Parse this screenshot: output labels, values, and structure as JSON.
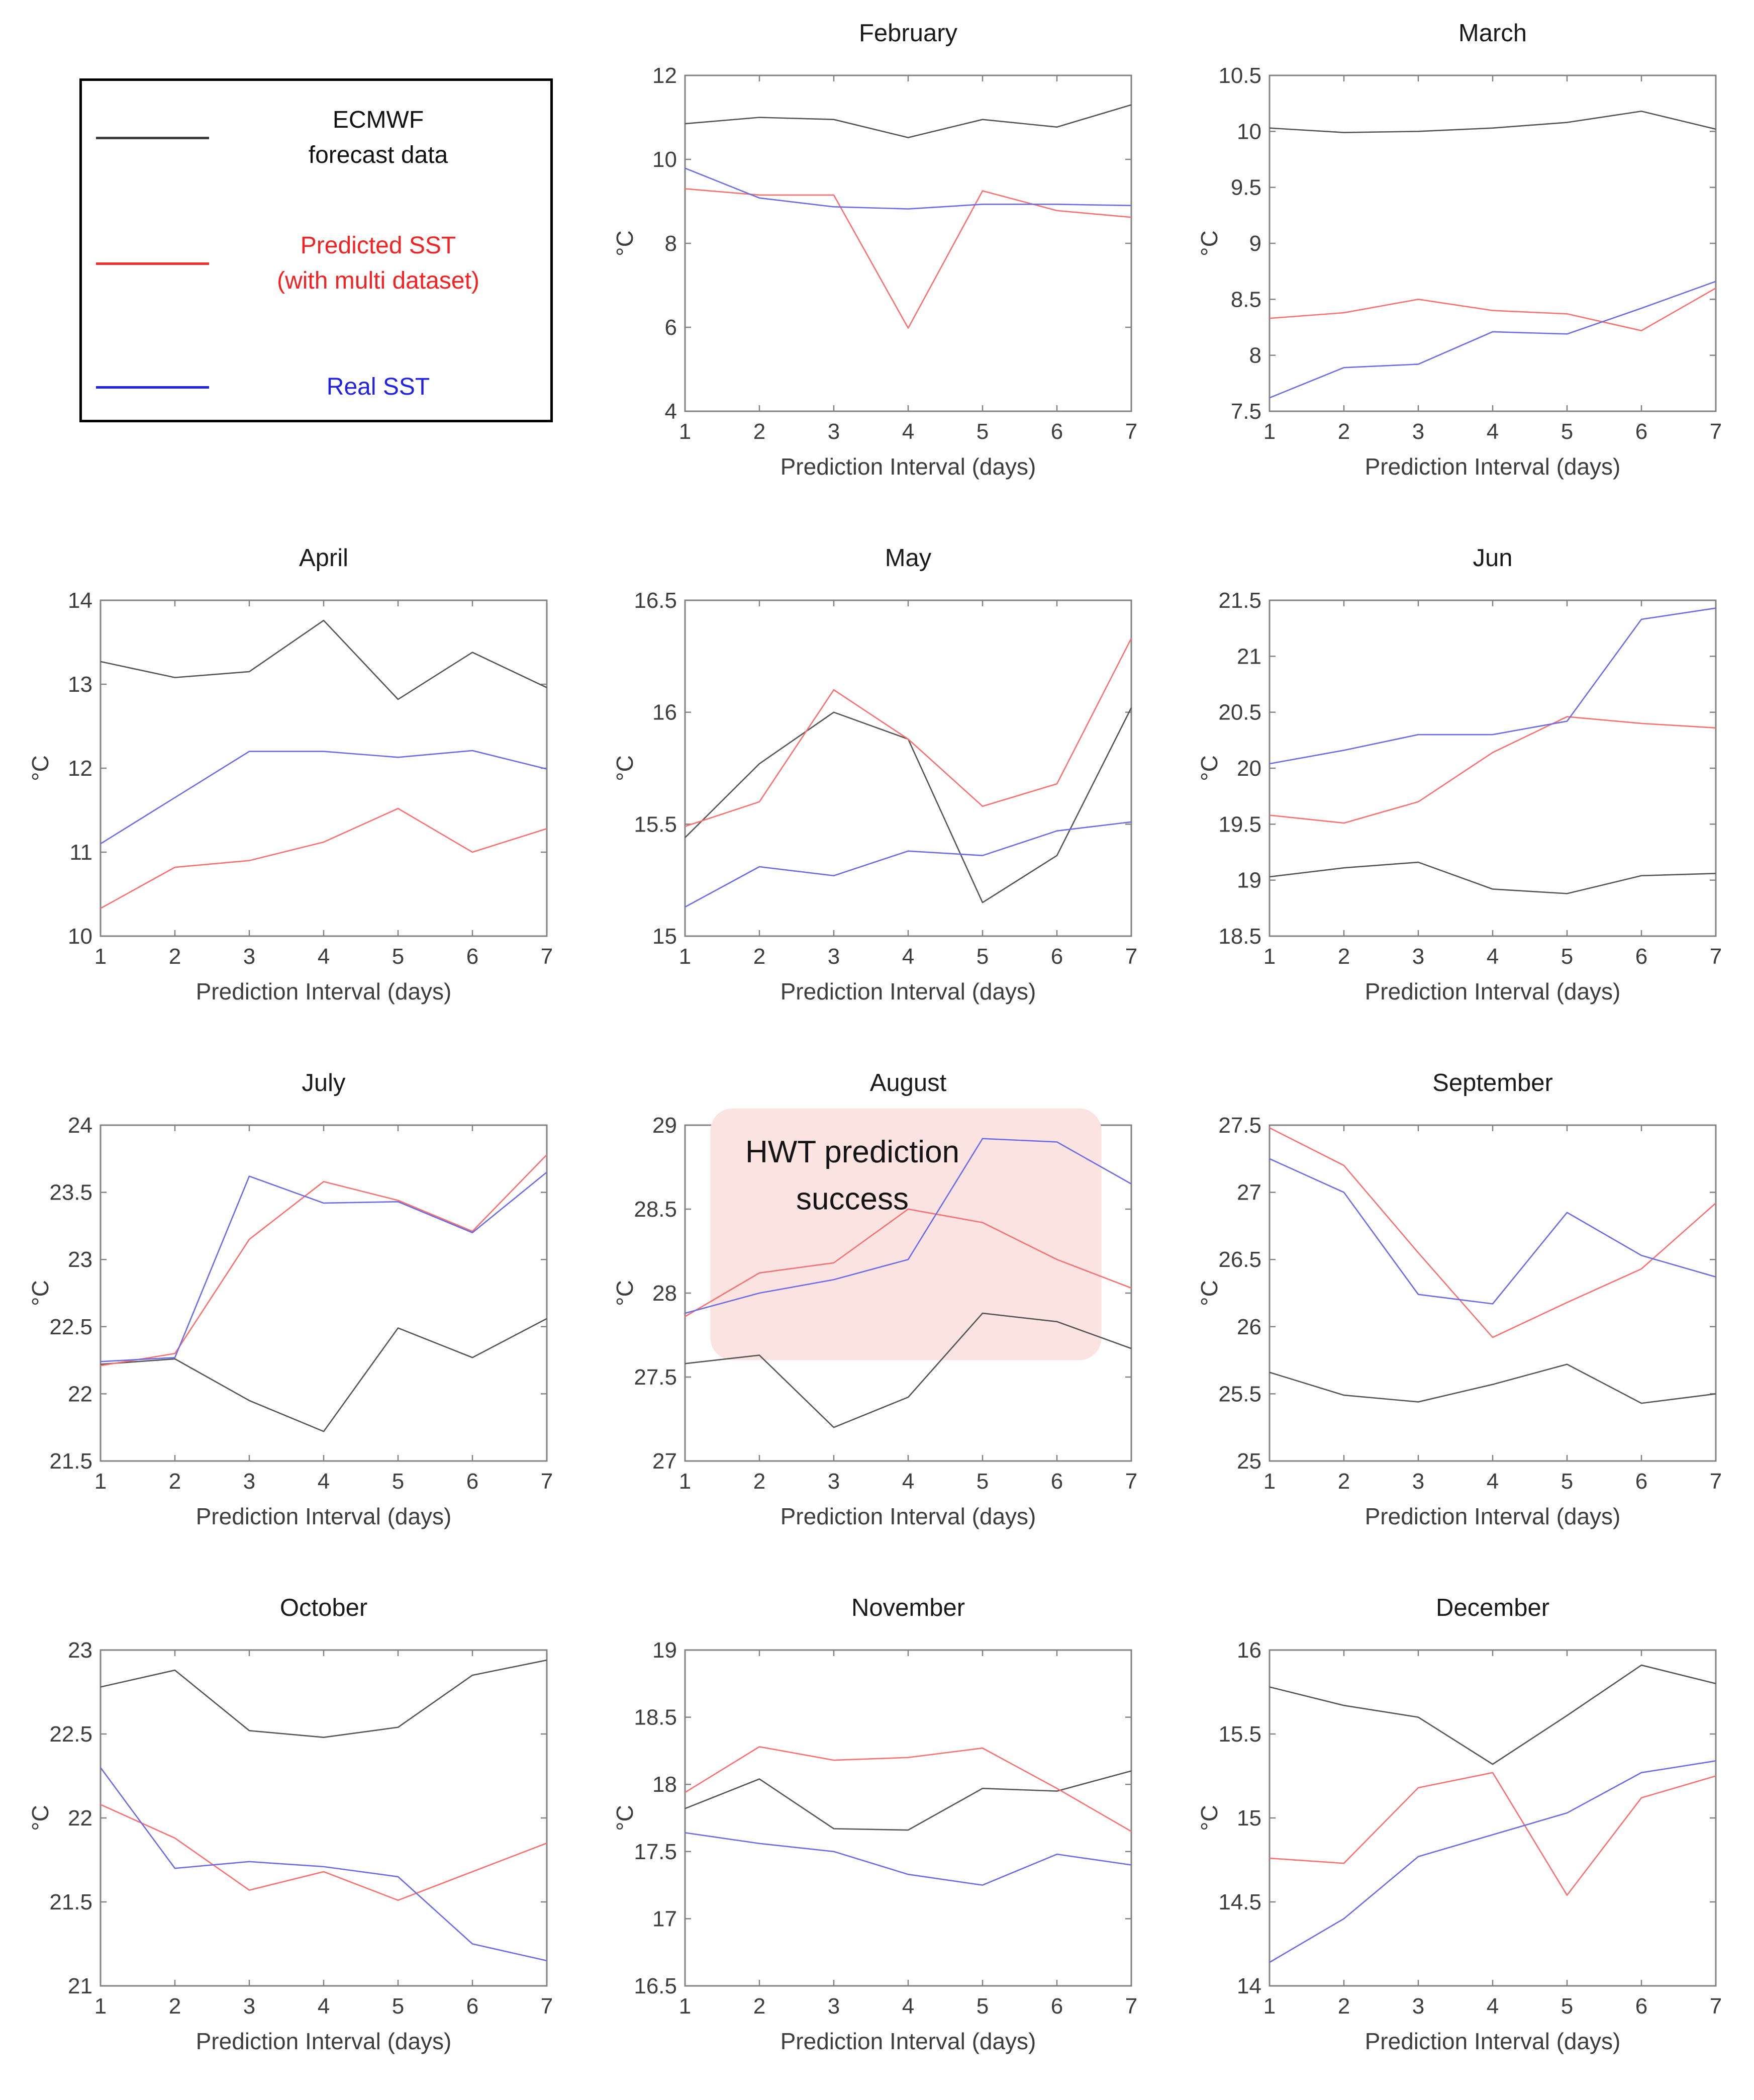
{
  "figure": {
    "background": "#ffffff",
    "frame_color": "#828282",
    "tick_label_color": "#3d3d3d",
    "title_color": "#1a1a1a"
  },
  "legend": {
    "border_color": "#000000",
    "entries": [
      {
        "series": "ecmwf",
        "label_lines": [
          "ECMWF",
          "forecast data"
        ],
        "line_color": "#3f3f3f",
        "text_color": "#111111"
      },
      {
        "series": "predicted",
        "label_lines": [
          "Predicted SST",
          "(with multi dataset)"
        ],
        "line_color": "#f02f2f",
        "text_color": "#f42222"
      },
      {
        "series": "real",
        "label_lines": [
          "Real SST"
        ],
        "line_color": "#2222dd",
        "text_color": "#2121e6"
      }
    ]
  },
  "axis_labels": {
    "x": "Prediction Interval (days)",
    "y": "°C"
  },
  "series_colors": {
    "ecmwf": "#545454",
    "predicted": "#f87070",
    "real": "#6b6be6"
  },
  "chart_data": [
    {
      "type": "line",
      "title": "February",
      "x": [
        1,
        2,
        3,
        4,
        5,
        6,
        7
      ],
      "xlabel": "Prediction Interval (days)",
      "ylabel": "°C",
      "ylim": [
        4,
        12
      ],
      "ystep": 2,
      "grid": false,
      "series": [
        {
          "name": "ECMWF forecast data",
          "color": "#545454",
          "values": [
            10.85,
            11.0,
            10.95,
            10.52,
            10.95,
            10.77,
            11.3
          ]
        },
        {
          "name": "Predicted SST (with multi dataset)",
          "color": "#f87070",
          "values": [
            9.3,
            9.15,
            9.15,
            5.98,
            9.25,
            8.78,
            8.62
          ]
        },
        {
          "name": "Real SST",
          "color": "#6b6be6",
          "values": [
            9.79,
            9.08,
            8.87,
            8.82,
            8.93,
            8.93,
            8.9
          ]
        }
      ]
    },
    {
      "type": "line",
      "title": "March",
      "x": [
        1,
        2,
        3,
        4,
        5,
        6,
        7
      ],
      "xlabel": "Prediction Interval (days)",
      "ylabel": "°C",
      "ylim": [
        7.5,
        10.5
      ],
      "ystep": 0.5,
      "grid": false,
      "series": [
        {
          "name": "ECMWF forecast data",
          "color": "#545454",
          "values": [
            10.03,
            9.99,
            10.0,
            10.03,
            10.08,
            10.18,
            10.02
          ]
        },
        {
          "name": "Predicted SST (with multi dataset)",
          "color": "#f87070",
          "values": [
            8.33,
            8.38,
            8.5,
            8.4,
            8.37,
            8.22,
            8.6
          ]
        },
        {
          "name": "Real SST",
          "color": "#6b6be6",
          "values": [
            7.62,
            7.89,
            7.92,
            8.21,
            8.19,
            8.42,
            8.66
          ]
        }
      ]
    },
    {
      "type": "line",
      "title": "April",
      "x": [
        1,
        2,
        3,
        4,
        5,
        6,
        7
      ],
      "xlabel": "Prediction Interval (days)",
      "ylabel": "°C",
      "ylim": [
        10,
        14
      ],
      "ystep": 1,
      "grid": false,
      "series": [
        {
          "name": "ECMWF forecast data",
          "color": "#545454",
          "values": [
            13.27,
            13.08,
            13.15,
            13.76,
            12.82,
            13.38,
            12.96
          ]
        },
        {
          "name": "Predicted SST (with multi dataset)",
          "color": "#f87070",
          "values": [
            10.33,
            10.82,
            10.9,
            11.12,
            11.52,
            11.0,
            11.28
          ]
        },
        {
          "name": "Real SST",
          "color": "#6b6be6",
          "values": [
            11.1,
            11.65,
            12.2,
            12.2,
            12.13,
            12.21,
            11.99
          ]
        }
      ]
    },
    {
      "type": "line",
      "title": "May",
      "x": [
        1,
        2,
        3,
        4,
        5,
        6,
        7
      ],
      "xlabel": "Prediction Interval (days)",
      "ylabel": "°C",
      "ylim": [
        15,
        16.5
      ],
      "ystep": 0.5,
      "grid": false,
      "series": [
        {
          "name": "ECMWF forecast data",
          "color": "#545454",
          "values": [
            15.44,
            15.77,
            16.0,
            15.88,
            15.15,
            15.36,
            16.02
          ]
        },
        {
          "name": "Predicted SST (with multi dataset)",
          "color": "#f87070",
          "values": [
            15.49,
            15.6,
            16.1,
            15.88,
            15.58,
            15.68,
            16.33
          ]
        },
        {
          "name": "Real SST",
          "color": "#6b6be6",
          "values": [
            15.13,
            15.31,
            15.27,
            15.38,
            15.36,
            15.47,
            15.51
          ]
        }
      ]
    },
    {
      "type": "line",
      "title": "Jun",
      "x": [
        1,
        2,
        3,
        4,
        5,
        6,
        7
      ],
      "xlabel": "Prediction Interval (days)",
      "ylabel": "°C",
      "ylim": [
        18.5,
        21.5
      ],
      "ystep": 0.5,
      "grid": false,
      "series": [
        {
          "name": "ECMWF forecast data",
          "color": "#545454",
          "values": [
            19.03,
            19.11,
            19.16,
            18.92,
            18.88,
            19.04,
            19.06
          ]
        },
        {
          "name": "Predicted SST (with multi dataset)",
          "color": "#f87070",
          "values": [
            19.58,
            19.51,
            19.7,
            20.14,
            20.46,
            20.4,
            20.36
          ]
        },
        {
          "name": "Real SST",
          "color": "#6b6be6",
          "values": [
            20.04,
            20.16,
            20.3,
            20.3,
            20.42,
            21.33,
            21.43
          ]
        }
      ]
    },
    {
      "type": "line",
      "title": "July",
      "x": [
        1,
        2,
        3,
        4,
        5,
        6,
        7
      ],
      "xlabel": "Prediction Interval (days)",
      "ylabel": "°C",
      "ylim": [
        21.5,
        24
      ],
      "ystep": 0.5,
      "grid": false,
      "series": [
        {
          "name": "ECMWF forecast data",
          "color": "#545454",
          "values": [
            22.22,
            22.26,
            21.95,
            21.72,
            22.49,
            22.27,
            22.56
          ]
        },
        {
          "name": "Predicted SST (with multi dataset)",
          "color": "#f87070",
          "values": [
            22.21,
            22.3,
            23.15,
            23.58,
            23.44,
            23.21,
            23.78
          ]
        },
        {
          "name": "Real SST",
          "color": "#6b6be6",
          "values": [
            22.24,
            22.27,
            23.62,
            23.42,
            23.43,
            23.2,
            23.65
          ]
        }
      ]
    },
    {
      "type": "line",
      "title": "August",
      "x": [
        1,
        2,
        3,
        4,
        5,
        6,
        7
      ],
      "xlabel": "Prediction Interval (days)",
      "ylabel": "°C",
      "ylim": [
        27,
        29
      ],
      "ystep": 0.5,
      "grid": false,
      "series": [
        {
          "name": "ECMWF forecast data",
          "color": "#545454",
          "values": [
            27.58,
            27.63,
            27.2,
            27.38,
            27.88,
            27.83,
            27.67
          ]
        },
        {
          "name": "Predicted SST (with multi dataset)",
          "color": "#f87070",
          "values": [
            27.86,
            28.12,
            28.18,
            28.5,
            28.42,
            28.2,
            28.03
          ]
        },
        {
          "name": "Real SST",
          "color": "#6b6be6",
          "values": [
            27.88,
            28.0,
            28.08,
            28.2,
            28.92,
            28.9,
            28.65
          ]
        }
      ],
      "annotation": {
        "text_lines": [
          "HWT prediction",
          "success"
        ],
        "x_range": [
          1.34,
          6.6
        ],
        "y_range": [
          27.6,
          29.1
        ],
        "fill": "#fbe3e1",
        "text_color": "#141414",
        "font_size": 62,
        "text_x": 3.25,
        "text_line_y": [
          28.84,
          28.56
        ]
      }
    },
    {
      "type": "line",
      "title": "September",
      "x": [
        1,
        2,
        3,
        4,
        5,
        6,
        7
      ],
      "xlabel": "Prediction Interval (days)",
      "ylabel": "°C",
      "ylim": [
        25,
        27.5
      ],
      "ystep": 0.5,
      "grid": false,
      "series": [
        {
          "name": "ECMWF forecast data",
          "color": "#545454",
          "values": [
            25.66,
            25.49,
            25.44,
            25.57,
            25.72,
            25.43,
            25.5
          ]
        },
        {
          "name": "Predicted SST (with multi dataset)",
          "color": "#f87070",
          "values": [
            27.48,
            27.2,
            26.55,
            25.92,
            26.18,
            26.43,
            26.92
          ]
        },
        {
          "name": "Real SST",
          "color": "#6b6be6",
          "values": [
            27.25,
            27.0,
            26.24,
            26.17,
            26.85,
            26.53,
            26.37
          ]
        }
      ]
    },
    {
      "type": "line",
      "title": "October",
      "x": [
        1,
        2,
        3,
        4,
        5,
        6,
        7
      ],
      "xlabel": "Prediction Interval (days)",
      "ylabel": "°C",
      "ylim": [
        21,
        23
      ],
      "ystep": 0.5,
      "grid": false,
      "series": [
        {
          "name": "ECMWF forecast data",
          "color": "#545454",
          "values": [
            22.78,
            22.88,
            22.52,
            22.48,
            22.54,
            22.85,
            22.94
          ]
        },
        {
          "name": "Predicted SST (with multi dataset)",
          "color": "#f87070",
          "values": [
            22.08,
            21.88,
            21.57,
            21.68,
            21.51,
            21.68,
            21.85
          ]
        },
        {
          "name": "Real SST",
          "color": "#6b6be6",
          "values": [
            22.3,
            21.7,
            21.74,
            21.71,
            21.65,
            21.25,
            21.15
          ]
        }
      ]
    },
    {
      "type": "line",
      "title": "November",
      "x": [
        1,
        2,
        3,
        4,
        5,
        6,
        7
      ],
      "xlabel": "Prediction Interval (days)",
      "ylabel": "°C",
      "ylim": [
        16.5,
        19
      ],
      "ystep": 0.5,
      "grid": false,
      "series": [
        {
          "name": "ECMWF forecast data",
          "color": "#545454",
          "values": [
            17.82,
            18.04,
            17.67,
            17.66,
            17.97,
            17.95,
            18.1
          ]
        },
        {
          "name": "Predicted SST (with multi dataset)",
          "color": "#f87070",
          "values": [
            17.94,
            18.28,
            18.18,
            18.2,
            18.27,
            17.97,
            17.65
          ]
        },
        {
          "name": "Real SST",
          "color": "#6b6be6",
          "values": [
            17.64,
            17.56,
            17.5,
            17.33,
            17.25,
            17.48,
            17.4
          ]
        }
      ]
    },
    {
      "type": "line",
      "title": "December",
      "x": [
        1,
        2,
        3,
        4,
        5,
        6,
        7
      ],
      "xlabel": "Prediction Interval (days)",
      "ylabel": "°C",
      "ylim": [
        14,
        16
      ],
      "ystep": 0.5,
      "grid": false,
      "series": [
        {
          "name": "ECMWF forecast data",
          "color": "#545454",
          "values": [
            15.78,
            15.67,
            15.6,
            15.32,
            15.61,
            15.91,
            15.8
          ]
        },
        {
          "name": "Predicted SST (with multi dataset)",
          "color": "#f87070",
          "values": [
            14.76,
            14.73,
            15.18,
            15.27,
            14.54,
            15.12,
            15.25
          ]
        },
        {
          "name": "Real SST",
          "color": "#6b6be6",
          "values": [
            14.14,
            14.4,
            14.77,
            14.9,
            15.03,
            15.27,
            15.34
          ]
        }
      ]
    }
  ]
}
